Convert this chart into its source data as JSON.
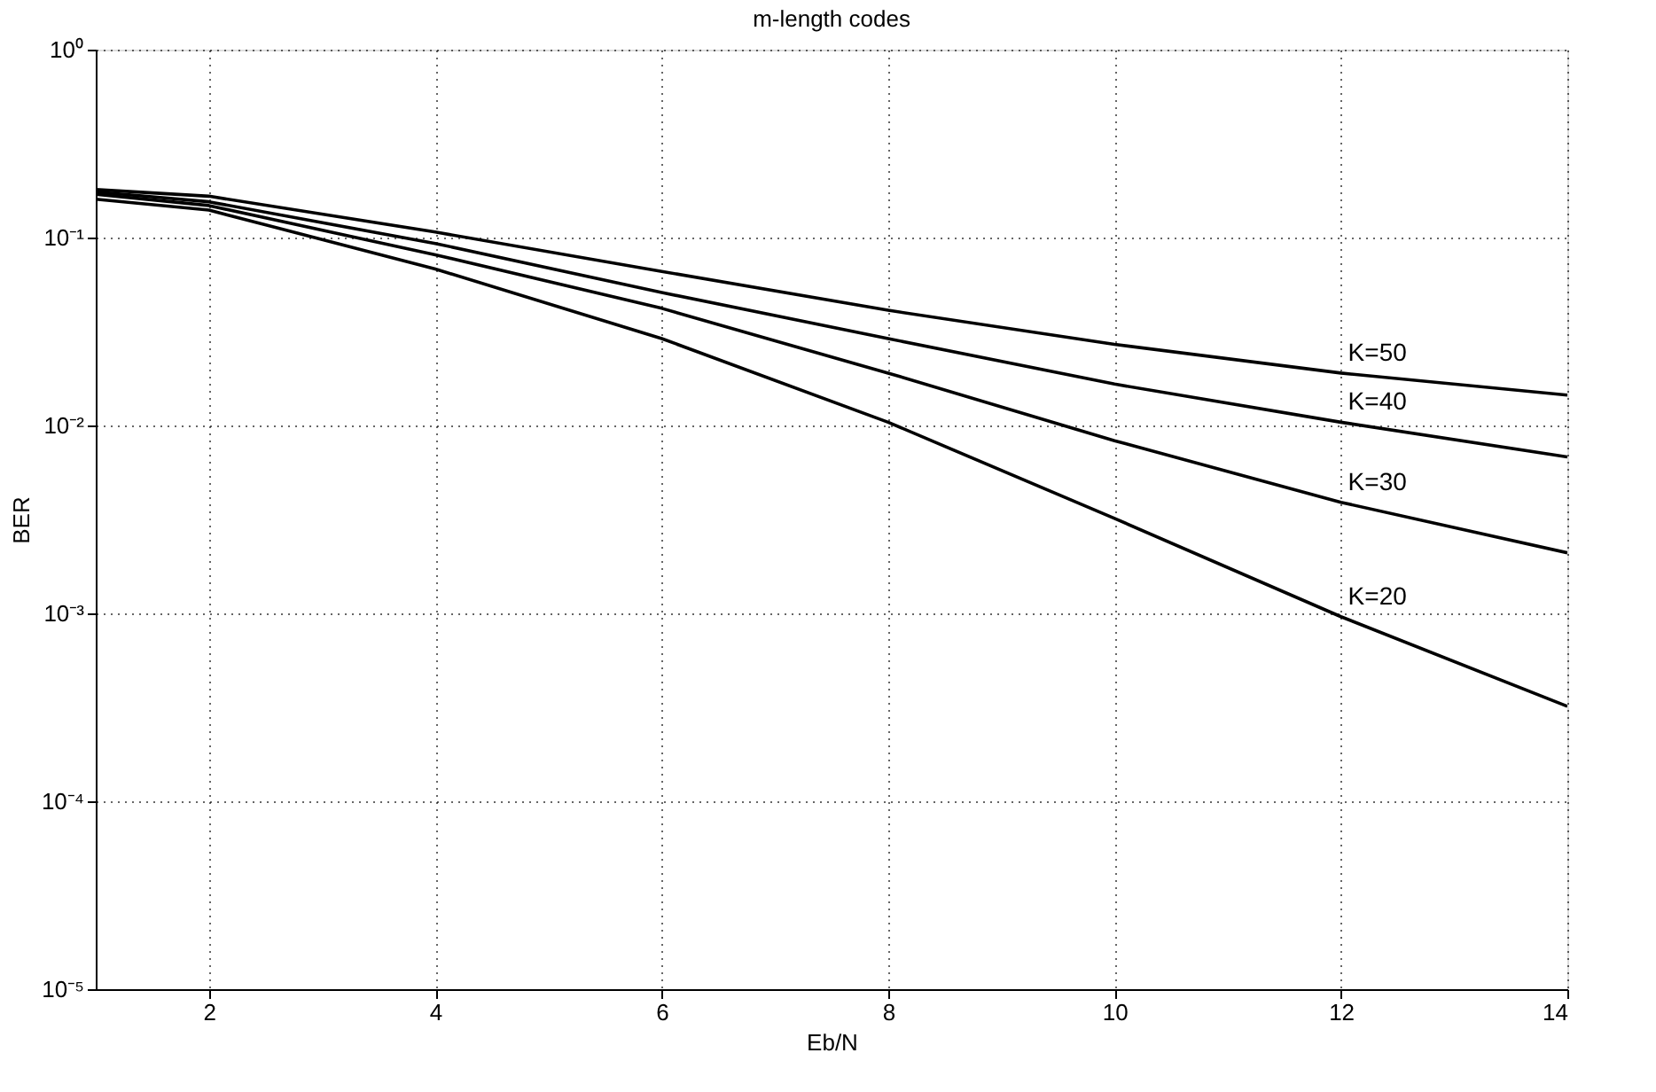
{
  "chart_data": {
    "type": "line",
    "title": "m-length codes",
    "xlabel": "Eb/N",
    "ylabel": "BER",
    "x": [
      1,
      2,
      4,
      6,
      8,
      10,
      12,
      14
    ],
    "series": [
      {
        "name": "K=50",
        "color": "#000000",
        "values": [
          0.18,
          0.166,
          0.107,
          0.066,
          0.041,
          0.027,
          0.019,
          0.0145
        ]
      },
      {
        "name": "K=40",
        "color": "#000000",
        "values": [
          0.175,
          0.155,
          0.093,
          0.051,
          0.029,
          0.0166,
          0.0104,
          0.0068
        ]
      },
      {
        "name": "K=30",
        "color": "#000000",
        "values": [
          0.17,
          0.148,
          0.081,
          0.042,
          0.019,
          0.0083,
          0.0039,
          0.0021
        ]
      },
      {
        "name": "K=20",
        "color": "#000000",
        "values": [
          0.16,
          0.14,
          0.068,
          0.029,
          0.0104,
          0.0032,
          0.00096,
          0.00032
        ]
      }
    ],
    "log": "y",
    "xlim": [
      1,
      14
    ],
    "ylim": [
      1e-05,
      1
    ],
    "xticks": [
      2,
      4,
      6,
      8,
      10,
      12,
      14
    ],
    "yticks": [
      {
        "value": 1,
        "label": "10⁰"
      },
      {
        "value": 0.1,
        "label": "10⁻¹"
      },
      {
        "value": 0.01,
        "label": "10⁻²"
      },
      {
        "value": 0.001,
        "label": "10⁻³"
      },
      {
        "value": 0.0001,
        "label": "10⁻⁴"
      },
      {
        "value": 1e-05,
        "label": "10⁻⁵"
      }
    ],
    "grid": true,
    "line_style": "solid",
    "marker": "none",
    "legend": false
  }
}
